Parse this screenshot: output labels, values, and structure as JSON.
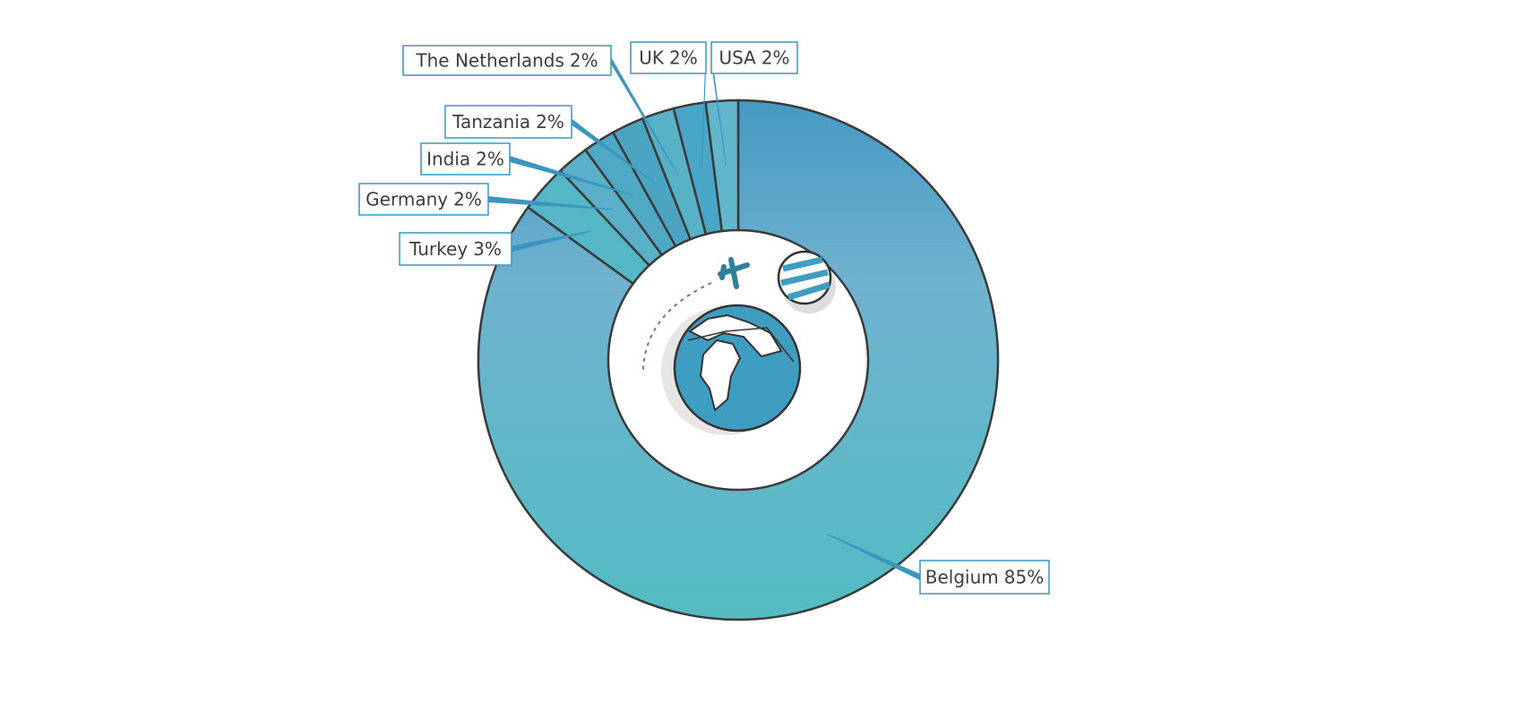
{
  "chart_data": {
    "type": "donut",
    "categories": [
      "Belgium",
      "Turkey",
      "Germany",
      "India",
      "Tanzania",
      "The Netherlands",
      "UK",
      "USA"
    ],
    "values": [
      85,
      3,
      2,
      2,
      2,
      2,
      2,
      2
    ],
    "value_labels": [
      "85%",
      "3%",
      "2%",
      "2%",
      "2%",
      "2%",
      "2%",
      "2%"
    ],
    "colors": [
      "#5fb2c8",
      "#55b6c6",
      "#5ab0c9",
      "#4fa9c4",
      "#4ba4c2",
      "#57b2c8",
      "#4aa6c6",
      "#62b6cc"
    ]
  }
}
